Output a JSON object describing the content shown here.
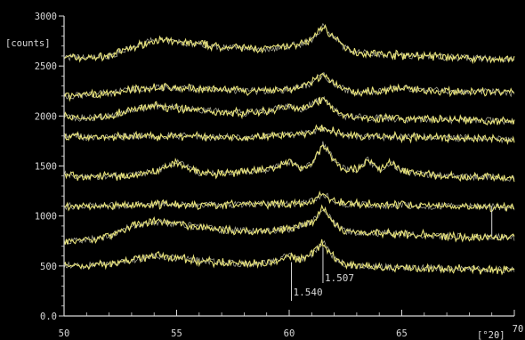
{
  "chart_data": {
    "type": "line",
    "title": "",
    "xlabel": "[°2θ]",
    "ylabel": "[counts]",
    "xlim": [
      50,
      70
    ],
    "ylim": [
      0,
      3000
    ],
    "x_ticks": [
      {
        "value": 50,
        "label": "50"
      },
      {
        "value": 55,
        "label": "55"
      },
      {
        "value": 60,
        "label": "60"
      },
      {
        "value": 65,
        "label": "65"
      },
      {
        "value": 70,
        "label": "70"
      }
    ],
    "y_ticks": [
      {
        "value": 0,
        "label": "0.0"
      },
      {
        "value": 500,
        "label": "500"
      },
      {
        "value": 1000,
        "label": "1000"
      },
      {
        "value": 1500,
        "label": "1500"
      },
      {
        "value": 2000,
        "label": "2000"
      },
      {
        "value": 2500,
        "label": "2500"
      },
      {
        "value": 3000,
        "label": "3000"
      }
    ],
    "grid": false,
    "legend": "none",
    "series": [
      {
        "x": [
          50,
          51,
          52,
          53,
          54,
          55,
          56,
          57,
          58,
          59,
          60,
          60.5,
          61,
          61.5,
          62,
          62.5,
          63,
          64,
          65,
          66,
          67,
          68,
          69,
          70
        ],
        "values": [
          2590,
          2580,
          2600,
          2680,
          2760,
          2740,
          2720,
          2690,
          2680,
          2670,
          2700,
          2720,
          2760,
          2900,
          2780,
          2680,
          2640,
          2620,
          2610,
          2600,
          2590,
          2580,
          2570,
          2560
        ]
      },
      {
        "x": [
          50,
          51,
          52,
          53,
          54,
          55,
          56,
          57,
          58,
          59,
          60,
          60.5,
          61,
          61.5,
          62,
          62.5,
          63,
          64,
          65,
          66,
          67,
          68,
          69,
          70
        ],
        "values": [
          2200,
          2210,
          2230,
          2260,
          2290,
          2280,
          2270,
          2260,
          2250,
          2250,
          2270,
          2290,
          2330,
          2420,
          2320,
          2260,
          2240,
          2250,
          2280,
          2260,
          2250,
          2240,
          2240,
          2230
        ]
      },
      {
        "x": [
          50,
          51,
          52,
          53,
          54,
          55,
          56,
          57,
          58,
          59,
          60,
          60.5,
          61,
          61.5,
          62,
          62.5,
          63,
          64,
          65,
          66,
          67,
          68,
          69,
          70
        ],
        "values": [
          1990,
          1980,
          2000,
          2060,
          2100,
          2080,
          2060,
          2040,
          2030,
          2050,
          2100,
          2060,
          2130,
          2170,
          2060,
          2000,
          1990,
          1980,
          1970,
          1970,
          1960,
          1960,
          1950,
          1950
        ]
      },
      {
        "x": [
          50,
          51,
          52,
          53,
          54,
          55,
          56,
          57,
          58,
          59,
          60,
          60.5,
          61,
          61.5,
          62,
          62.5,
          63,
          64,
          65,
          66,
          67,
          68,
          69,
          70
        ],
        "values": [
          1800,
          1790,
          1790,
          1800,
          1800,
          1800,
          1790,
          1790,
          1790,
          1800,
          1810,
          1820,
          1840,
          1880,
          1840,
          1810,
          1800,
          1790,
          1790,
          1790,
          1780,
          1780,
          1770,
          1770
        ]
      },
      {
        "x": [
          50,
          51,
          52,
          53,
          54,
          55,
          56,
          57,
          58,
          59,
          60,
          60.5,
          61,
          61.5,
          62,
          62.5,
          63,
          63.5,
          64,
          64.5,
          65,
          66,
          67,
          68,
          69,
          70
        ],
        "values": [
          1420,
          1390,
          1400,
          1410,
          1440,
          1540,
          1430,
          1420,
          1440,
          1460,
          1540,
          1480,
          1520,
          1720,
          1560,
          1460,
          1470,
          1560,
          1460,
          1540,
          1450,
          1420,
          1400,
          1390,
          1390,
          1370
        ]
      },
      {
        "x": [
          50,
          51,
          52,
          53,
          54,
          55,
          56,
          57,
          58,
          59,
          60,
          60.5,
          61,
          61.5,
          62,
          62.5,
          63,
          64,
          65,
          66,
          67,
          68,
          69,
          70
        ],
        "values": [
          1100,
          1100,
          1100,
          1110,
          1120,
          1120,
          1110,
          1110,
          1120,
          1120,
          1120,
          1130,
          1150,
          1220,
          1150,
          1120,
          1120,
          1110,
          1110,
          1100,
          1100,
          1100,
          1090,
          1090
        ]
      },
      {
        "x": [
          50,
          51,
          52,
          53,
          54,
          55,
          56,
          57,
          58,
          59,
          60,
          60.5,
          61,
          61.5,
          62,
          62.5,
          63,
          64,
          65,
          66,
          67,
          68,
          69,
          70
        ],
        "values": [
          740,
          760,
          800,
          900,
          940,
          920,
          890,
          860,
          850,
          850,
          870,
          900,
          940,
          1080,
          920,
          850,
          840,
          830,
          820,
          810,
          800,
          790,
          790,
          780
        ]
      },
      {
        "x": [
          50,
          51,
          52,
          53,
          54,
          55,
          56,
          57,
          58,
          59,
          60,
          60.5,
          61,
          61.5,
          62,
          62.5,
          63,
          64,
          65,
          66,
          67,
          68,
          69,
          70
        ],
        "values": [
          510,
          500,
          520,
          560,
          600,
          580,
          550,
          530,
          520,
          530,
          600,
          560,
          620,
          740,
          580,
          510,
          500,
          490,
          480,
          480,
          470,
          470,
          460,
          460
        ]
      }
    ],
    "annotations": [
      {
        "x": 60.1,
        "label": "1.540"
      },
      {
        "x": 61.5,
        "label": "1.507"
      }
    ],
    "colors": {
      "background": "#000000",
      "axis": "#d8d8d8",
      "trace": "#e8e37a",
      "noise": "#f2f2d6"
    }
  }
}
